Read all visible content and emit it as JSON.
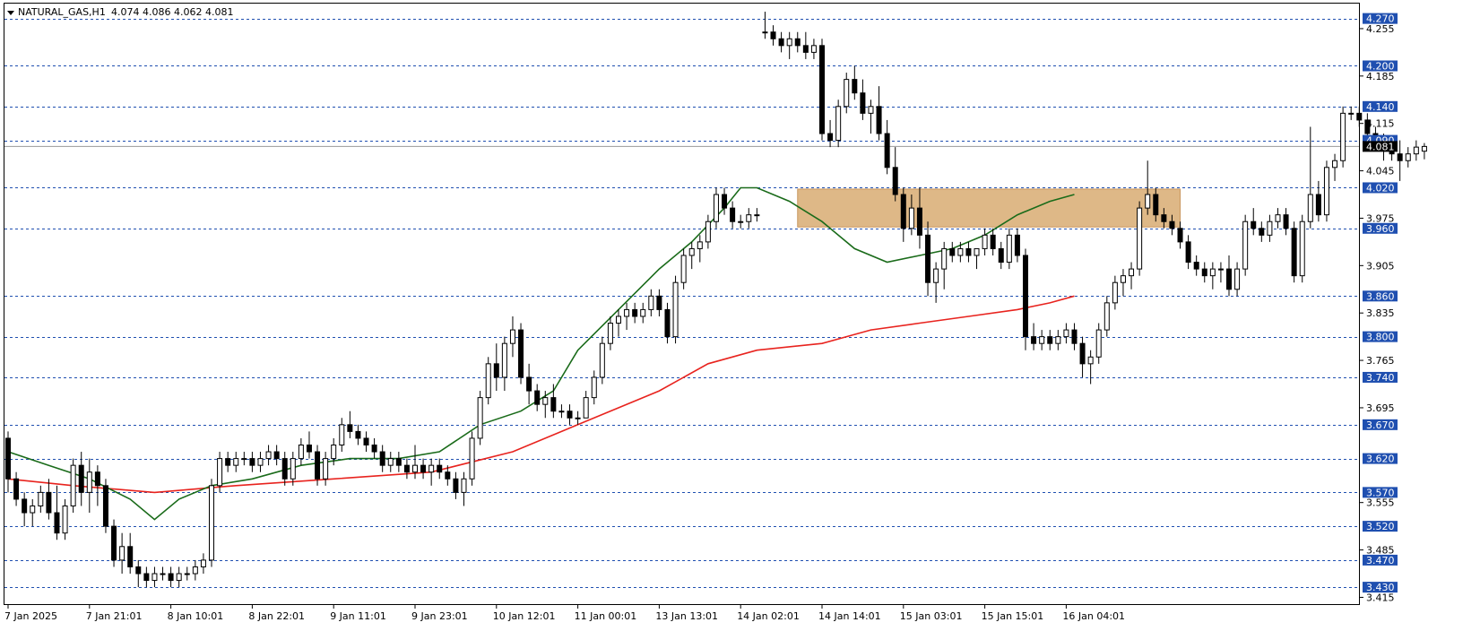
{
  "header": {
    "symbol": "NATURAL_GAS,H1",
    "ohlc": "4.074 4.086 4.062 4.081"
  },
  "colors": {
    "background": "#ffffff",
    "frame": "#000000",
    "bull_body": "#ffffff",
    "bear_body": "#000000",
    "level_line": "#1f4fb0",
    "level_label_bg": "#1f4fb0",
    "price_label_bg": "#000000",
    "ma_fast": "#1a6b1a",
    "ma_slow": "#e8231e",
    "zone_fill": "#deb887"
  },
  "chart_data": {
    "type": "candlestick",
    "price_range": [
      3.405,
      4.292
    ],
    "y_ticks": [
      "4.255",
      "4.185",
      "4.115",
      "4.045",
      "3.975",
      "3.905",
      "3.835",
      "3.765",
      "3.695",
      "3.555",
      "3.485",
      "3.415"
    ],
    "levels": [
      {
        "value": 4.27,
        "label": "4.270"
      },
      {
        "value": 4.2,
        "label": "4.200"
      },
      {
        "value": 4.14,
        "label": "4.140"
      },
      {
        "value": 4.09,
        "label": "4.090"
      },
      {
        "value": 4.02,
        "label": "4.020"
      },
      {
        "value": 3.96,
        "label": "3.960"
      },
      {
        "value": 3.86,
        "label": "3.860"
      },
      {
        "value": 3.8,
        "label": "3.800"
      },
      {
        "value": 3.74,
        "label": "3.740"
      },
      {
        "value": 3.67,
        "label": "3.670"
      },
      {
        "value": 3.62,
        "label": "3.620"
      },
      {
        "value": 3.57,
        "label": "3.570"
      },
      {
        "value": 3.52,
        "label": "3.520"
      },
      {
        "value": 3.47,
        "label": "3.470"
      },
      {
        "value": 3.43,
        "label": "3.430"
      }
    ],
    "current_price": {
      "value": 4.081,
      "label": "4.081"
    },
    "zone": {
      "from_bar": 97,
      "to_bar": 144,
      "top": 4.018,
      "bottom": 3.962
    },
    "x_labels": [
      {
        "bar": 0,
        "label": "7 Jan 2025"
      },
      {
        "bar": 10,
        "label": "7 Jan 21:01"
      },
      {
        "bar": 20,
        "label": "8 Jan 10:01"
      },
      {
        "bar": 30,
        "label": "8 Jan 22:01"
      },
      {
        "bar": 40,
        "label": "9 Jan 11:01"
      },
      {
        "bar": 50,
        "label": "9 Jan 23:01"
      },
      {
        "bar": 60,
        "label": "10 Jan 12:01"
      },
      {
        "bar": 70,
        "label": "11 Jan 00:01"
      },
      {
        "bar": 80,
        "label": "13 Jan 13:01"
      },
      {
        "bar": 90,
        "label": "14 Jan 02:01"
      },
      {
        "bar": 100,
        "label": "14 Jan 14:01"
      },
      {
        "bar": 110,
        "label": "15 Jan 03:01"
      },
      {
        "bar": 120,
        "label": "15 Jan 15:01"
      },
      {
        "bar": 130,
        "label": "16 Jan 04:01"
      }
    ],
    "candles": [
      [
        3.65,
        3.66,
        3.57,
        3.59
      ],
      [
        3.59,
        3.6,
        3.55,
        3.56
      ],
      [
        3.56,
        3.57,
        3.52,
        3.54
      ],
      [
        3.54,
        3.56,
        3.52,
        3.55
      ],
      [
        3.55,
        3.58,
        3.54,
        3.57
      ],
      [
        3.57,
        3.59,
        3.53,
        3.54
      ],
      [
        3.54,
        3.58,
        3.5,
        3.51
      ],
      [
        3.51,
        3.56,
        3.5,
        3.55
      ],
      [
        3.55,
        3.62,
        3.54,
        3.61
      ],
      [
        3.61,
        3.63,
        3.55,
        3.57
      ],
      [
        3.57,
        3.62,
        3.54,
        3.6
      ],
      [
        3.6,
        3.61,
        3.55,
        3.58
      ],
      [
        3.58,
        3.59,
        3.51,
        3.52
      ],
      [
        3.52,
        3.53,
        3.46,
        3.47
      ],
      [
        3.47,
        3.51,
        3.45,
        3.49
      ],
      [
        3.49,
        3.51,
        3.45,
        3.46
      ],
      [
        3.46,
        3.47,
        3.43,
        3.45
      ],
      [
        3.45,
        3.46,
        3.43,
        3.44
      ],
      [
        3.44,
        3.46,
        3.43,
        3.45
      ],
      [
        3.45,
        3.46,
        3.44,
        3.45
      ],
      [
        3.45,
        3.46,
        3.43,
        3.44
      ],
      [
        3.44,
        3.46,
        3.43,
        3.45
      ],
      [
        3.45,
        3.46,
        3.44,
        3.45
      ],
      [
        3.45,
        3.47,
        3.44,
        3.46
      ],
      [
        3.46,
        3.48,
        3.45,
        3.47
      ],
      [
        3.47,
        3.59,
        3.46,
        3.58
      ],
      [
        3.58,
        3.63,
        3.57,
        3.62
      ],
      [
        3.62,
        3.63,
        3.6,
        3.61
      ],
      [
        3.61,
        3.63,
        3.6,
        3.62
      ],
      [
        3.62,
        3.63,
        3.61,
        3.62
      ],
      [
        3.62,
        3.63,
        3.6,
        3.61
      ],
      [
        3.61,
        3.63,
        3.6,
        3.62
      ],
      [
        3.62,
        3.64,
        3.61,
        3.63
      ],
      [
        3.63,
        3.64,
        3.61,
        3.62
      ],
      [
        3.62,
        3.63,
        3.58,
        3.59
      ],
      [
        3.59,
        3.63,
        3.58,
        3.62
      ],
      [
        3.62,
        3.65,
        3.61,
        3.64
      ],
      [
        3.64,
        3.66,
        3.62,
        3.63
      ],
      [
        3.63,
        3.64,
        3.58,
        3.59
      ],
      [
        3.59,
        3.63,
        3.58,
        3.62
      ],
      [
        3.62,
        3.65,
        3.61,
        3.64
      ],
      [
        3.64,
        3.68,
        3.63,
        3.67
      ],
      [
        3.67,
        3.69,
        3.65,
        3.66
      ],
      [
        3.66,
        3.67,
        3.64,
        3.65
      ],
      [
        3.65,
        3.66,
        3.63,
        3.64
      ],
      [
        3.64,
        3.65,
        3.62,
        3.63
      ],
      [
        3.63,
        3.64,
        3.6,
        3.61
      ],
      [
        3.61,
        3.63,
        3.6,
        3.62
      ],
      [
        3.62,
        3.63,
        3.6,
        3.61
      ],
      [
        3.61,
        3.62,
        3.59,
        3.6
      ],
      [
        3.6,
        3.64,
        3.59,
        3.61
      ],
      [
        3.61,
        3.62,
        3.59,
        3.6
      ],
      [
        3.6,
        3.62,
        3.58,
        3.61
      ],
      [
        3.61,
        3.62,
        3.59,
        3.6
      ],
      [
        3.6,
        3.61,
        3.58,
        3.59
      ],
      [
        3.59,
        3.6,
        3.56,
        3.57
      ],
      [
        3.57,
        3.6,
        3.55,
        3.59
      ],
      [
        3.59,
        3.66,
        3.58,
        3.65
      ],
      [
        3.65,
        3.72,
        3.64,
        3.71
      ],
      [
        3.71,
        3.77,
        3.7,
        3.76
      ],
      [
        3.76,
        3.79,
        3.72,
        3.74
      ],
      [
        3.74,
        3.8,
        3.72,
        3.79
      ],
      [
        3.79,
        3.83,
        3.77,
        3.81
      ],
      [
        3.81,
        3.82,
        3.73,
        3.74
      ],
      [
        3.74,
        3.76,
        3.7,
        3.72
      ],
      [
        3.72,
        3.73,
        3.69,
        3.7
      ],
      [
        3.7,
        3.72,
        3.68,
        3.71
      ],
      [
        3.71,
        3.73,
        3.68,
        3.69
      ],
      [
        3.69,
        3.7,
        3.68,
        3.69
      ],
      [
        3.69,
        3.7,
        3.67,
        3.68
      ],
      [
        3.68,
        3.69,
        3.67,
        3.68
      ],
      [
        3.68,
        3.72,
        3.68,
        3.71
      ],
      [
        3.71,
        3.75,
        3.7,
        3.74
      ],
      [
        3.74,
        3.8,
        3.73,
        3.79
      ],
      [
        3.79,
        3.83,
        3.78,
        3.82
      ],
      [
        3.82,
        3.84,
        3.8,
        3.83
      ],
      [
        3.83,
        3.85,
        3.81,
        3.84
      ],
      [
        3.84,
        3.85,
        3.82,
        3.83
      ],
      [
        3.83,
        3.85,
        3.82,
        3.84
      ],
      [
        3.84,
        3.87,
        3.83,
        3.86
      ],
      [
        3.86,
        3.87,
        3.83,
        3.84
      ],
      [
        3.84,
        3.85,
        3.79,
        3.8
      ],
      [
        3.8,
        3.89,
        3.79,
        3.88
      ],
      [
        3.88,
        3.93,
        3.87,
        3.92
      ],
      [
        3.92,
        3.94,
        3.9,
        3.93
      ],
      [
        3.93,
        3.95,
        3.91,
        3.94
      ],
      [
        3.94,
        3.98,
        3.93,
        3.97
      ],
      [
        3.97,
        4.02,
        3.96,
        4.01
      ],
      [
        4.01,
        4.02,
        3.98,
        3.99
      ],
      [
        3.99,
        4.0,
        3.96,
        3.97
      ],
      [
        3.97,
        3.98,
        3.96,
        3.97
      ],
      [
        3.97,
        3.99,
        3.96,
        3.98
      ],
      [
        3.98,
        3.99,
        3.97,
        3.98
      ],
      [
        4.25,
        4.28,
        4.24,
        4.25
      ],
      [
        4.25,
        4.26,
        4.23,
        4.24
      ],
      [
        4.24,
        4.25,
        4.22,
        4.23
      ],
      [
        4.23,
        4.25,
        4.21,
        4.24
      ],
      [
        4.24,
        4.25,
        4.22,
        4.23
      ],
      [
        4.23,
        4.25,
        4.21,
        4.22
      ],
      [
        4.22,
        4.24,
        4.21,
        4.23
      ],
      [
        4.23,
        4.24,
        4.09,
        4.1
      ],
      [
        4.1,
        4.12,
        4.08,
        4.09
      ],
      [
        4.09,
        4.15,
        4.08,
        4.14
      ],
      [
        4.14,
        4.19,
        4.13,
        4.18
      ],
      [
        4.18,
        4.2,
        4.15,
        4.16
      ],
      [
        4.16,
        4.18,
        4.12,
        4.13
      ],
      [
        4.13,
        4.15,
        4.1,
        4.14
      ],
      [
        4.14,
        4.17,
        4.09,
        4.1
      ],
      [
        4.1,
        4.12,
        4.04,
        4.05
      ],
      [
        4.05,
        4.08,
        4.0,
        4.01
      ],
      [
        4.01,
        4.02,
        3.94,
        3.96
      ],
      [
        3.96,
        4.01,
        3.95,
        3.99
      ],
      [
        3.99,
        4.02,
        3.93,
        3.95
      ],
      [
        3.95,
        3.97,
        3.86,
        3.88
      ],
      [
        3.88,
        3.91,
        3.85,
        3.9
      ],
      [
        3.9,
        3.94,
        3.87,
        3.93
      ],
      [
        3.93,
        3.94,
        3.91,
        3.92
      ],
      [
        3.92,
        3.94,
        3.91,
        3.93
      ],
      [
        3.93,
        3.94,
        3.91,
        3.92
      ],
      [
        3.92,
        3.93,
        3.9,
        3.93
      ],
      [
        3.93,
        3.96,
        3.92,
        3.95
      ],
      [
        3.95,
        3.96,
        3.92,
        3.93
      ],
      [
        3.93,
        3.94,
        3.9,
        3.91
      ],
      [
        3.91,
        3.96,
        3.9,
        3.95
      ],
      [
        3.95,
        3.96,
        3.91,
        3.92
      ],
      [
        3.92,
        3.93,
        3.78,
        3.8
      ],
      [
        3.8,
        3.82,
        3.78,
        3.79
      ],
      [
        3.79,
        3.81,
        3.78,
        3.8
      ],
      [
        3.8,
        3.81,
        3.78,
        3.79
      ],
      [
        3.79,
        3.81,
        3.78,
        3.8
      ],
      [
        3.8,
        3.82,
        3.79,
        3.81
      ],
      [
        3.81,
        3.82,
        3.78,
        3.79
      ],
      [
        3.79,
        3.8,
        3.74,
        3.76
      ],
      [
        3.76,
        3.78,
        3.73,
        3.77
      ],
      [
        3.77,
        3.82,
        3.76,
        3.81
      ],
      [
        3.81,
        3.86,
        3.8,
        3.85
      ],
      [
        3.85,
        3.89,
        3.84,
        3.88
      ],
      [
        3.88,
        3.9,
        3.86,
        3.89
      ],
      [
        3.89,
        3.91,
        3.87,
        3.9
      ],
      [
        3.9,
        4.0,
        3.89,
        3.99
      ],
      [
        3.99,
        4.06,
        3.98,
        4.01
      ],
      [
        4.01,
        4.02,
        3.97,
        3.98
      ],
      [
        3.98,
        3.99,
        3.96,
        3.97
      ],
      [
        3.97,
        3.98,
        3.95,
        3.96
      ],
      [
        3.96,
        3.97,
        3.93,
        3.94
      ],
      [
        3.94,
        3.95,
        3.9,
        3.91
      ],
      [
        3.91,
        3.92,
        3.89,
        3.9
      ],
      [
        3.9,
        3.91,
        3.88,
        3.89
      ],
      [
        3.89,
        3.91,
        3.87,
        3.9
      ],
      [
        3.9,
        3.91,
        3.88,
        3.9
      ],
      [
        3.9,
        3.92,
        3.86,
        3.87
      ],
      [
        3.87,
        3.91,
        3.86,
        3.9
      ],
      [
        3.9,
        3.98,
        3.89,
        3.97
      ],
      [
        3.97,
        3.99,
        3.95,
        3.96
      ],
      [
        3.96,
        3.97,
        3.94,
        3.95
      ],
      [
        3.95,
        3.98,
        3.94,
        3.97
      ],
      [
        3.97,
        3.99,
        3.96,
        3.98
      ],
      [
        3.98,
        3.99,
        3.95,
        3.96
      ],
      [
        3.96,
        3.97,
        3.88,
        3.89
      ],
      [
        3.89,
        3.98,
        3.88,
        3.97
      ],
      [
        3.97,
        4.11,
        3.96,
        4.01
      ],
      [
        4.01,
        4.03,
        3.97,
        3.98
      ],
      [
        3.98,
        4.06,
        3.97,
        4.05
      ],
      [
        4.05,
        4.07,
        4.03,
        4.06
      ],
      [
        4.06,
        4.14,
        4.05,
        4.13
      ],
      [
        4.13,
        4.14,
        4.12,
        4.13
      ],
      [
        4.13,
        4.14,
        4.11,
        4.12
      ],
      [
        4.12,
        4.13,
        4.09,
        4.1
      ],
      [
        4.1,
        4.11,
        4.08,
        4.09
      ],
      [
        4.09,
        4.1,
        4.06,
        4.08
      ],
      [
        4.08,
        4.09,
        4.06,
        4.07
      ],
      [
        4.07,
        4.09,
        4.03,
        4.06
      ],
      [
        4.06,
        4.08,
        4.05,
        4.07
      ],
      [
        4.07,
        4.09,
        4.06,
        4.08
      ],
      [
        4.074,
        4.086,
        4.062,
        4.081
      ]
    ],
    "ma_fast": [
      [
        0,
        3.63
      ],
      [
        5,
        3.61
      ],
      [
        10,
        3.59
      ],
      [
        15,
        3.56
      ],
      [
        18,
        3.53
      ],
      [
        21,
        3.56
      ],
      [
        25,
        3.58
      ],
      [
        30,
        3.59
      ],
      [
        36,
        3.61
      ],
      [
        42,
        3.62
      ],
      [
        48,
        3.62
      ],
      [
        53,
        3.63
      ],
      [
        58,
        3.67
      ],
      [
        63,
        3.69
      ],
      [
        67,
        3.72
      ],
      [
        70,
        3.78
      ],
      [
        75,
        3.84
      ],
      [
        80,
        3.9
      ],
      [
        84,
        3.94
      ],
      [
        88,
        3.99
      ],
      [
        90,
        4.02
      ],
      [
        92,
        4.02
      ],
      [
        96,
        4.0
      ],
      [
        100,
        3.97
      ],
      [
        104,
        3.93
      ],
      [
        108,
        3.91
      ],
      [
        112,
        3.92
      ],
      [
        116,
        3.93
      ],
      [
        120,
        3.95
      ],
      [
        124,
        3.98
      ],
      [
        128,
        4.0
      ],
      [
        131,
        4.01
      ]
    ],
    "ma_slow": [
      [
        0,
        3.59
      ],
      [
        8,
        3.58
      ],
      [
        18,
        3.57
      ],
      [
        28,
        3.58
      ],
      [
        40,
        3.59
      ],
      [
        52,
        3.6
      ],
      [
        62,
        3.63
      ],
      [
        70,
        3.67
      ],
      [
        80,
        3.72
      ],
      [
        86,
        3.76
      ],
      [
        92,
        3.78
      ],
      [
        100,
        3.79
      ],
      [
        106,
        3.81
      ],
      [
        112,
        3.82
      ],
      [
        118,
        3.83
      ],
      [
        124,
        3.84
      ],
      [
        128,
        3.85
      ],
      [
        131,
        3.86
      ]
    ]
  }
}
